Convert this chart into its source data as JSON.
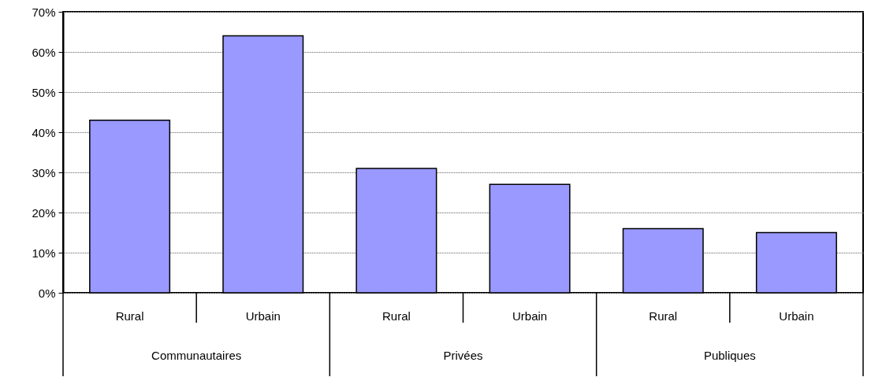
{
  "chart_data": {
    "type": "bar",
    "categories": [
      "Rural",
      "Urbain",
      "Rural",
      "Urbain",
      "Rural",
      "Urbain"
    ],
    "annotations": [
      "Communautaires",
      "Privées",
      "Publiques"
    ],
    "values": [
      43,
      64,
      31,
      27,
      16,
      15
    ],
    "color": "#9999ff",
    "ylim": [
      0,
      70
    ],
    "yticks": [
      {
        "value": 0,
        "label": "0%"
      },
      {
        "value": 10,
        "label": "10%"
      },
      {
        "value": 20,
        "label": "20%"
      },
      {
        "value": 30,
        "label": "30%"
      },
      {
        "value": 40,
        "label": "40%"
      },
      {
        "value": 50,
        "label": "50%"
      },
      {
        "value": 60,
        "label": "60%"
      },
      {
        "value": 70,
        "label": "70%"
      }
    ],
    "grid": "y"
  }
}
